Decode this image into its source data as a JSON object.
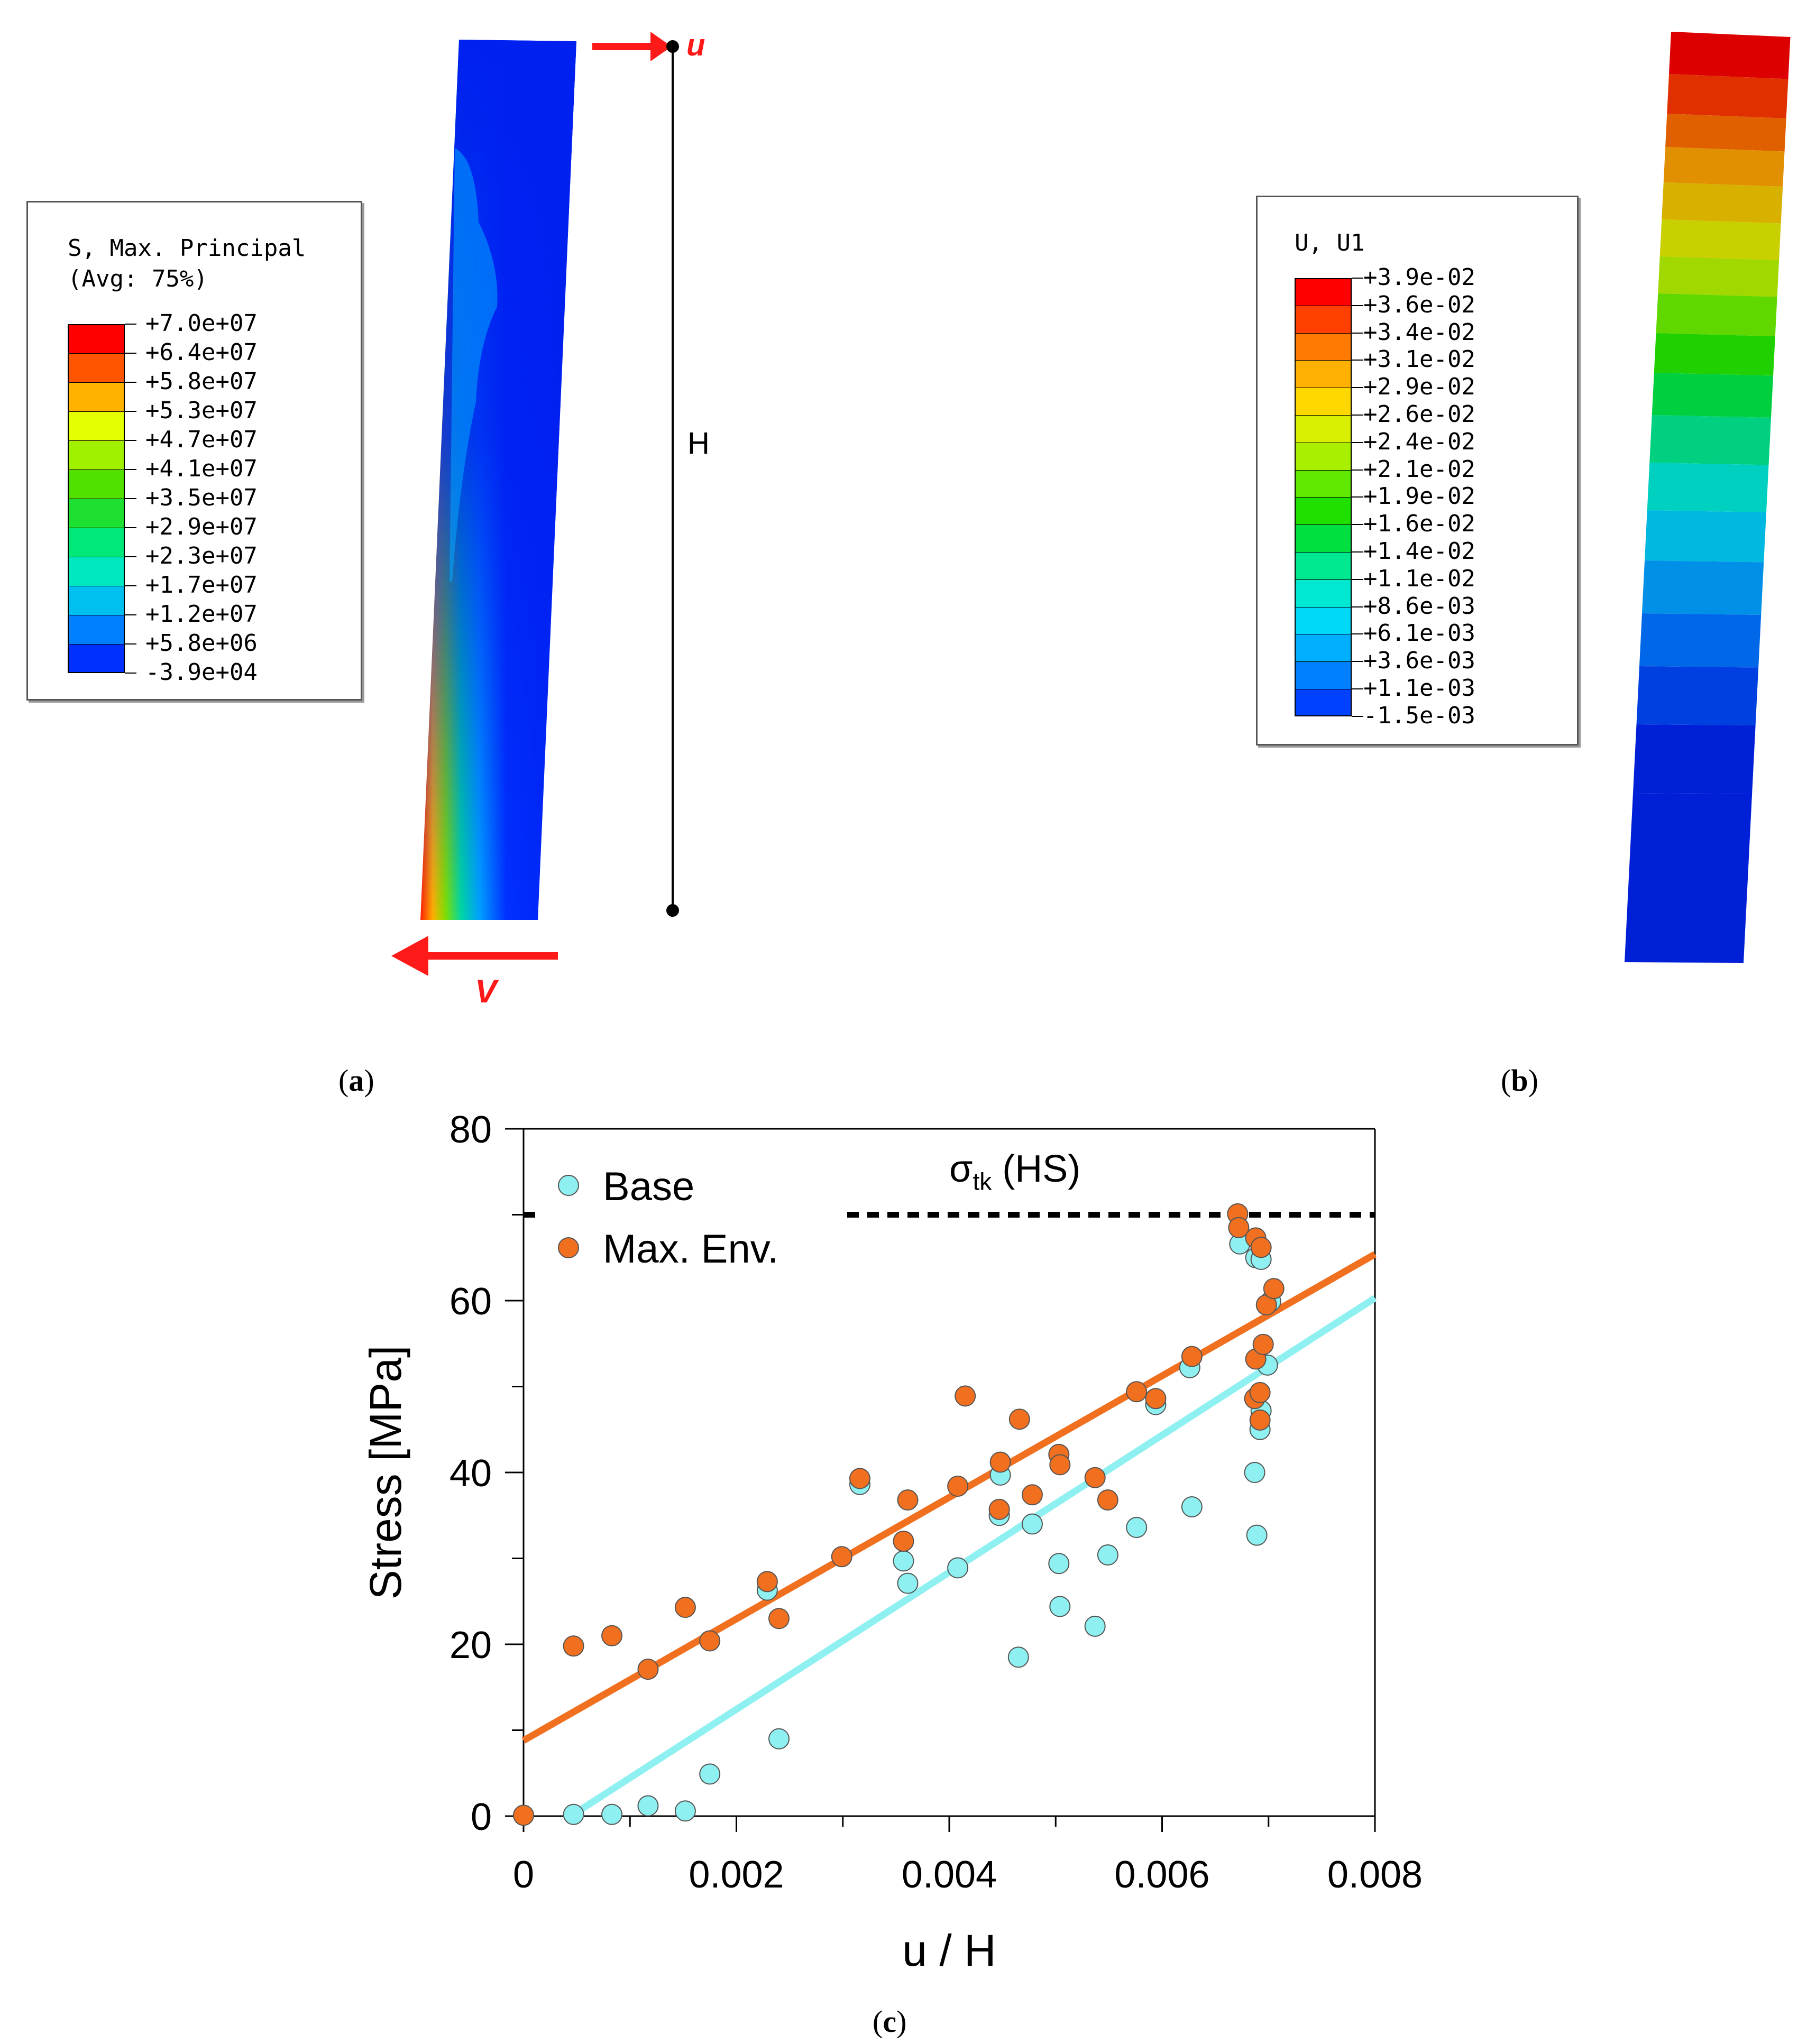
{
  "panel_a": {
    "label": "a",
    "legend_title_line1": "S, Max. Principal",
    "legend_title_line2": "(Avg: 75%)",
    "legend_values": [
      "+7.0e+07",
      "+6.4e+07",
      "+5.8e+07",
      "+5.3e+07",
      "+4.7e+07",
      "+4.1e+07",
      "+3.5e+07",
      "+2.9e+07",
      "+2.3e+07",
      "+1.7e+07",
      "+1.2e+07",
      "+5.8e+06",
      "-3.9e+04"
    ],
    "legend_colors": [
      "#ff0000",
      "#ff5500",
      "#ffb300",
      "#e3ff00",
      "#a0f000",
      "#52e000",
      "#1ee030",
      "#00e878",
      "#00e8c0",
      "#00c0f0",
      "#0080ff",
      "#0030ff"
    ],
    "arrow_top_label": "u",
    "arrow_bottom_label": "V",
    "height_label": "H"
  },
  "panel_b": {
    "label": "b",
    "legend_title": "U, U1",
    "legend_values": [
      "+3.9e-02",
      "+3.6e-02",
      "+3.4e-02",
      "+3.1e-02",
      "+2.9e-02",
      "+2.6e-02",
      "+2.4e-02",
      "+2.1e-02",
      "+1.9e-02",
      "+1.6e-02",
      "+1.4e-02",
      "+1.1e-02",
      "+8.6e-03",
      "+6.1e-03",
      "+3.6e-03",
      "+1.1e-03",
      "-1.5e-03"
    ],
    "legend_colors": [
      "#ff0000",
      "#ff4000",
      "#ff7a00",
      "#ffb000",
      "#ffd800",
      "#d8f000",
      "#a8f000",
      "#60e800",
      "#20e000",
      "#00e040",
      "#00e890",
      "#00e8d0",
      "#00d8f8",
      "#00b0ff",
      "#0080ff",
      "#0040ff"
    ]
  },
  "panel_c": {
    "label": "c",
    "annotation_sigma": "σ",
    "annotation_sub": "tk",
    "annotation_rest": " (HS)"
  },
  "chart_data": {
    "type": "scatter",
    "xlabel": "u / H",
    "ylabel": "Stress [MPa]",
    "xlim": [
      0,
      0.008
    ],
    "ylim": [
      0,
      80
    ],
    "x_ticks": [
      "0",
      "0.002",
      "0.004",
      "0.006",
      "0.008"
    ],
    "x_tick_values": [
      0,
      0.002,
      0.004,
      0.006,
      0.008
    ],
    "y_ticks": [
      "0",
      "20",
      "40",
      "60",
      "80"
    ],
    "y_tick_values": [
      0,
      20,
      40,
      60,
      80
    ],
    "legend_position": "top-left",
    "reference_line": {
      "y": 70,
      "style": "dashed",
      "color": "#000000"
    },
    "series": [
      {
        "name": "Base",
        "color": "#8ef0f0",
        "fit_color": "#8ef0f0",
        "fit": {
          "x0": 0.00048,
          "y0": 0.3,
          "x1": 0.008,
          "y1": 60.3
        },
        "points": [
          [
            0.00047,
            0.2
          ],
          [
            0.00083,
            0.2
          ],
          [
            0.00117,
            1.2
          ],
          [
            0.00152,
            0.6
          ],
          [
            0.00175,
            4.9
          ],
          [
            0.00229,
            26.3
          ],
          [
            0.0024,
            9.0
          ],
          [
            0.00316,
            38.6
          ],
          [
            0.00357,
            29.7
          ],
          [
            0.00361,
            27.1
          ],
          [
            0.00408,
            28.9
          ],
          [
            0.00448,
            39.7
          ],
          [
            0.00447,
            35.0
          ],
          [
            0.00465,
            18.5
          ],
          [
            0.00478,
            34.0
          ],
          [
            0.00503,
            29.4
          ],
          [
            0.00504,
            24.4
          ],
          [
            0.00537,
            22.1
          ],
          [
            0.00549,
            30.4
          ],
          [
            0.00576,
            33.6
          ],
          [
            0.00594,
            47.9
          ],
          [
            0.00626,
            52.2
          ],
          [
            0.00628,
            36.0
          ],
          [
            0.00673,
            66.6
          ],
          [
            0.00688,
            65.0
          ],
          [
            0.00693,
            64.8
          ],
          [
            0.00687,
            40.0
          ],
          [
            0.00689,
            32.7
          ],
          [
            0.00692,
            45.0
          ],
          [
            0.00693,
            47.2
          ],
          [
            0.00699,
            52.5
          ],
          [
            0.00702,
            59.9
          ]
        ]
      },
      {
        "name": "Max. Env.",
        "color": "#f07020",
        "fit_color": "#f07020",
        "fit": {
          "x0": 0.0,
          "y0": 8.8,
          "x1": 0.008,
          "y1": 65.4
        },
        "points": [
          [
            0.0,
            0.1
          ],
          [
            0.00047,
            19.8
          ],
          [
            0.00083,
            21.0
          ],
          [
            0.00117,
            17.1
          ],
          [
            0.00152,
            24.3
          ],
          [
            0.00175,
            20.4
          ],
          [
            0.00229,
            27.3
          ],
          [
            0.0024,
            23.0
          ],
          [
            0.00299,
            30.2
          ],
          [
            0.00316,
            39.3
          ],
          [
            0.00357,
            32.0
          ],
          [
            0.00361,
            36.8
          ],
          [
            0.00408,
            38.4
          ],
          [
            0.00415,
            48.9
          ],
          [
            0.00448,
            41.2
          ],
          [
            0.00447,
            35.7
          ],
          [
            0.00466,
            46.2
          ],
          [
            0.00478,
            37.4
          ],
          [
            0.00503,
            42.1
          ],
          [
            0.00504,
            40.9
          ],
          [
            0.00537,
            39.4
          ],
          [
            0.00549,
            36.8
          ],
          [
            0.00576,
            49.4
          ],
          [
            0.00594,
            48.6
          ],
          [
            0.00628,
            53.5
          ],
          [
            0.00671,
            70.1
          ],
          [
            0.00672,
            68.5
          ],
          [
            0.00688,
            67.3
          ],
          [
            0.00693,
            66.2
          ],
          [
            0.00688,
            53.2
          ],
          [
            0.00687,
            48.6
          ],
          [
            0.00692,
            49.3
          ],
          [
            0.00692,
            46.1
          ],
          [
            0.00695,
            54.9
          ],
          [
            0.00698,
            59.5
          ],
          [
            0.00705,
            61.4
          ]
        ]
      }
    ]
  }
}
